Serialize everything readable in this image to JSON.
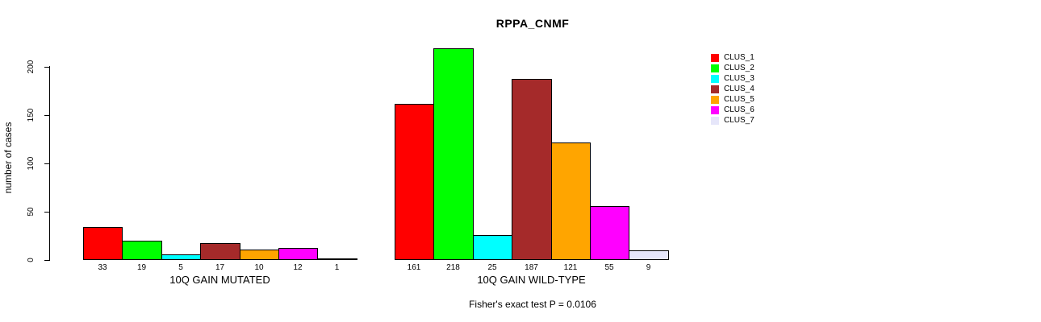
{
  "title": "RPPA_CNMF",
  "chart_data": {
    "type": "bar",
    "title": "RPPA_CNMF",
    "ylabel": "number of cases",
    "ylim": [
      0,
      200
    ],
    "yticks": [
      0,
      50,
      100,
      150,
      200
    ],
    "grid": false,
    "legend_position": "right",
    "clusters": [
      "CLUS_1",
      "CLUS_2",
      "CLUS_3",
      "CLUS_4",
      "CLUS_5",
      "CLUS_6",
      "CLUS_7"
    ],
    "colors": [
      "#ff0000",
      "#00ff00",
      "#00ffff",
      "#a52a2a",
      "#ffa500",
      "#ff00ff",
      "#e6e6fa"
    ],
    "groups": [
      {
        "label": "10Q GAIN MUTATED",
        "values": [
          33,
          19,
          5,
          17,
          10,
          12,
          1
        ]
      },
      {
        "label": "10Q GAIN WILD-TYPE",
        "values": [
          161,
          218,
          25,
          187,
          121,
          55,
          9
        ]
      }
    ],
    "annotation": "Fisher's exact test P = 0.0106"
  }
}
